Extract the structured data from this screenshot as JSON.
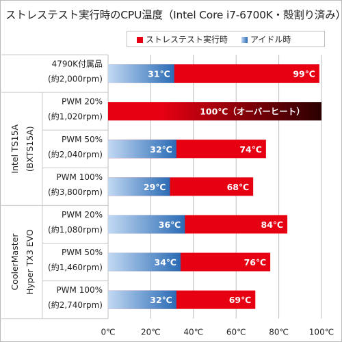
{
  "title": "ストレステスト実行時のCPU温度（Intel Core i7-6700K・殻割り済み）",
  "legend": {
    "stress_label": "ストレステスト実行時",
    "idle_label": "アイドル時"
  },
  "colors": {
    "stress": "#e60012",
    "idle": "#2a6bb5",
    "overheat_end": "#2a0000"
  },
  "chart_data": {
    "type": "bar",
    "orientation": "horizontal",
    "unit": "℃",
    "xlim": [
      0,
      100
    ],
    "x_ticks": [
      "0℃",
      "20℃",
      "40℃",
      "60℃",
      "80℃",
      "100℃"
    ],
    "grid": true,
    "groups": [
      {
        "label": "",
        "rows": [
          0
        ]
      },
      {
        "label": "Intel TS15A\n(BXTS15A)",
        "rows": [
          1,
          2,
          3
        ]
      },
      {
        "label": "CoolerMaster\nHyper TX3 EVO",
        "rows": [
          4,
          5,
          6
        ]
      }
    ],
    "categories": [
      [
        "4790K付属品",
        "(約2,000rpm)"
      ],
      [
        "PWM 20%",
        "(約1,020rpm)"
      ],
      [
        "PWM 50%",
        "(約2,040rpm)"
      ],
      [
        "PWM 100%",
        "(約3,800rpm)"
      ],
      [
        "PWM 20%",
        "(約1,080rpm)"
      ],
      [
        "PWM 50%",
        "(約1,460rpm)"
      ],
      [
        "PWM 100%",
        "(約2,740rpm)"
      ]
    ],
    "series": [
      {
        "name": "ストレステスト実行時",
        "values": [
          99,
          100,
          74,
          68,
          84,
          76,
          69
        ]
      },
      {
        "name": "アイドル時",
        "values": [
          31,
          null,
          32,
          29,
          36,
          34,
          32
        ]
      }
    ],
    "data_labels": {
      "stress": [
        "99℃",
        "100℃（オーバーヒート）",
        "74℃",
        "68℃",
        "84℃",
        "76℃",
        "69℃"
      ],
      "idle": [
        "31℃",
        "",
        "32℃",
        "29℃",
        "36℃",
        "34℃",
        "32℃"
      ]
    },
    "overheat_rows": [
      1
    ]
  }
}
